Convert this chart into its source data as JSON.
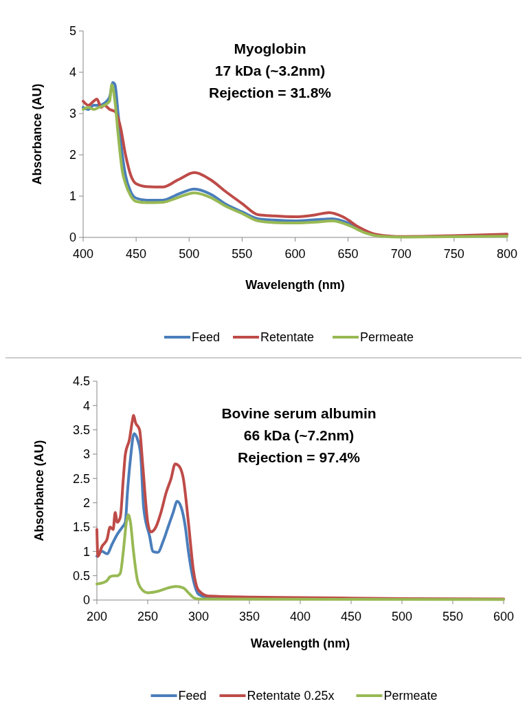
{
  "chart_data": [
    {
      "type": "line",
      "title": "Myoglobin",
      "subtitle": "17 kDa (~3.2nm)",
      "annotations": [
        "Rejection = 31.8%"
      ],
      "xlabel": "Wavelength (nm)",
      "ylabel": "Absorbance (AU)",
      "xlim": [
        400,
        800
      ],
      "xticks": [
        400,
        450,
        500,
        550,
        600,
        650,
        700,
        750,
        800
      ],
      "ylim": [
        0,
        5
      ],
      "yticks": [
        0,
        1,
        2,
        3,
        4,
        5
      ],
      "grid": false,
      "legend": "bottom",
      "marker": "none",
      "line_style": "solid",
      "series": [
        {
          "name": "Feed",
          "color": "#4a7ebb",
          "x": [
            400,
            405,
            410,
            415,
            420,
            425,
            428,
            430,
            433,
            437,
            440,
            445,
            450,
            460,
            475,
            490,
            505,
            520,
            535,
            550,
            565,
            580,
            600,
            620,
            635,
            650,
            665
          ],
          "values": [
            3.15,
            3.1,
            3.2,
            3.2,
            3.25,
            3.4,
            3.75,
            3.7,
            3.0,
            2.0,
            1.5,
            1.1,
            0.95,
            0.9,
            0.9,
            1.05,
            1.17,
            1.05,
            0.8,
            0.62,
            0.45,
            0.42,
            0.4,
            0.43,
            0.45,
            0.35,
            0.15
          ]
        },
        {
          "name": "Retentate",
          "color": "#be4b48",
          "x": [
            400,
            405,
            410,
            413,
            417,
            420,
            425,
            430,
            435,
            440,
            445,
            450,
            460,
            475,
            490,
            505,
            520,
            535,
            550,
            565,
            580,
            600,
            620,
            632,
            645,
            660,
            675,
            690,
            700,
            750,
            800
          ],
          "values": [
            3.3,
            3.2,
            3.3,
            3.35,
            3.15,
            3.2,
            3.1,
            3.05,
            2.7,
            2.0,
            1.5,
            1.3,
            1.23,
            1.22,
            1.4,
            1.57,
            1.4,
            1.1,
            0.82,
            0.55,
            0.52,
            0.5,
            0.55,
            0.6,
            0.5,
            0.25,
            0.08,
            0.03,
            0.02,
            0.04,
            0.08
          ]
        },
        {
          "name": "Permeate",
          "color": "#98b954",
          "x": [
            400,
            405,
            410,
            415,
            420,
            425,
            427,
            430,
            433,
            437,
            440,
            445,
            450,
            460,
            475,
            490,
            505,
            520,
            535,
            550,
            565,
            580,
            600,
            620,
            635,
            650,
            665,
            680,
            700,
            800
          ],
          "values": [
            3.1,
            3.15,
            3.1,
            3.15,
            3.2,
            3.3,
            3.7,
            3.3,
            2.5,
            1.6,
            1.3,
            1.0,
            0.87,
            0.84,
            0.85,
            0.97,
            1.08,
            0.97,
            0.75,
            0.58,
            0.4,
            0.36,
            0.35,
            0.37,
            0.4,
            0.3,
            0.12,
            0.03,
            0.01,
            0.03
          ]
        }
      ]
    },
    {
      "type": "line",
      "title": "Bovine serum albumin",
      "subtitle": "66 kDa (~7.2nm)",
      "annotations": [
        "Rejection = 97.4%"
      ],
      "xlabel": "Wavelength (nm)",
      "ylabel": "Absorbance (AU)",
      "xlim": [
        200,
        600
      ],
      "xticks": [
        200,
        250,
        300,
        350,
        400,
        450,
        500,
        550,
        600
      ],
      "ylim": [
        0,
        4.5
      ],
      "yticks": [
        0,
        0.5,
        1,
        1.5,
        2,
        2.5,
        3,
        3.5,
        4,
        4.5
      ],
      "grid": false,
      "legend": "bottom",
      "marker": "none",
      "line_style": "solid",
      "series": [
        {
          "name": "Feed",
          "color": "#4a7ebb",
          "x": [
            200,
            205,
            210,
            215,
            220,
            225,
            228,
            230,
            233,
            236.5,
            240,
            243,
            246,
            252,
            255,
            260,
            265,
            270,
            275,
            279,
            283,
            287,
            290,
            295,
            300,
            310,
            350
          ],
          "values": [
            0.9,
            1.0,
            0.95,
            1.15,
            1.35,
            1.5,
            1.6,
            2.2,
            2.9,
            3.42,
            3.3,
            3.0,
            1.9,
            1.3,
            1.0,
            0.98,
            1.2,
            1.5,
            1.8,
            2.03,
            1.9,
            1.5,
            1.0,
            0.4,
            0.12,
            0.05,
            0.03
          ]
        },
        {
          "name": "Retentate 0.25x",
          "color": "#be4b48",
          "x": [
            200,
            201,
            205,
            210,
            213,
            216,
            218,
            220,
            223,
            226,
            228,
            232,
            235,
            236,
            238,
            242,
            245,
            250,
            253,
            258,
            263,
            268,
            273,
            277,
            281,
            285,
            290,
            295,
            300,
            310,
            350,
            400,
            500,
            600
          ],
          "values": [
            1.45,
            0.9,
            1.1,
            1.25,
            1.5,
            1.45,
            1.8,
            1.6,
            1.7,
            2.5,
            3.0,
            3.3,
            3.7,
            3.8,
            3.65,
            3.5,
            2.8,
            1.6,
            1.4,
            1.5,
            1.8,
            2.2,
            2.5,
            2.8,
            2.75,
            2.5,
            1.6,
            0.6,
            0.2,
            0.08,
            0.06,
            0.05,
            0.03,
            0.02
          ]
        },
        {
          "name": "Permeate",
          "color": "#98b954",
          "x": [
            200,
            205,
            210,
            213,
            217,
            220,
            223,
            226,
            229,
            231,
            233,
            236,
            240,
            245,
            250,
            260,
            270,
            278,
            285,
            290,
            295,
            300,
            600
          ],
          "values": [
            0.33,
            0.35,
            0.4,
            0.48,
            0.5,
            0.5,
            0.55,
            1.0,
            1.6,
            1.75,
            1.6,
            1.0,
            0.4,
            0.2,
            0.15,
            0.18,
            0.25,
            0.28,
            0.25,
            0.15,
            0.05,
            0.02,
            0.01
          ]
        }
      ]
    }
  ]
}
